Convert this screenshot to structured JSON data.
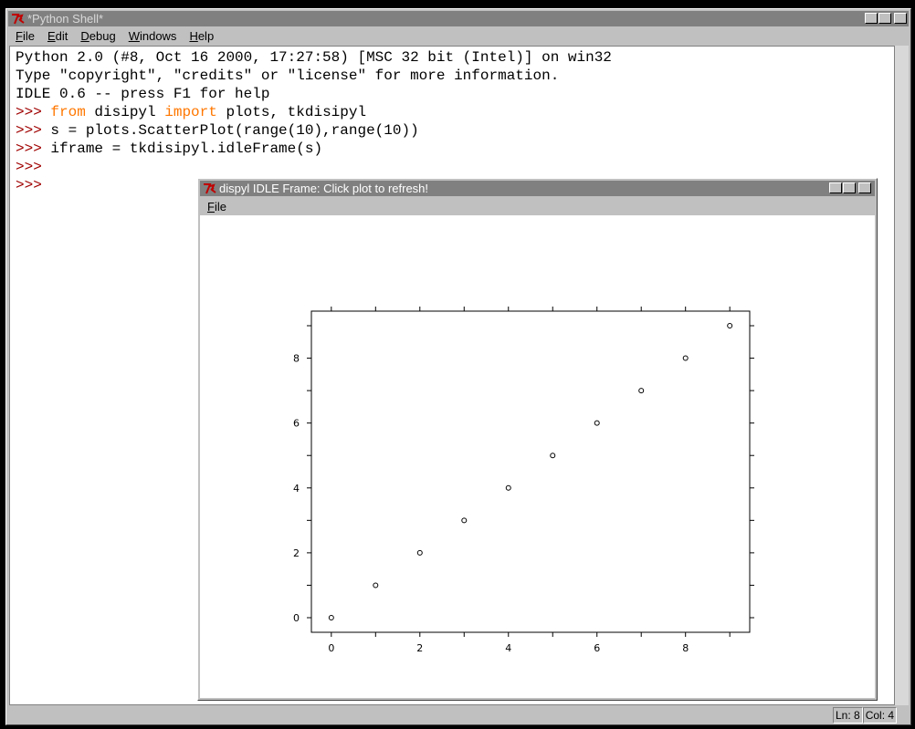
{
  "shell_window": {
    "title": "*Python Shell*",
    "menu": [
      "File",
      "Edit",
      "Debug",
      "Windows",
      "Help"
    ],
    "lines": [
      [
        {
          "text": "Python 2.0 (#8, Oct 16 2000, 17:27:58) [MSC 32 bit (Intel)] on win32",
          "color": "#000000"
        }
      ],
      [
        {
          "text": "Type \"copyright\", \"credits\" or \"license\" for more information.",
          "color": "#000000"
        }
      ],
      [
        {
          "text": "IDLE 0.6 -- press F1 for help",
          "color": "#000000"
        }
      ],
      [
        {
          "text": ">>> ",
          "color": "#a00000"
        },
        {
          "text": "from",
          "color": "#ff7700"
        },
        {
          "text": " disipyl ",
          "color": "#000000"
        },
        {
          "text": "import",
          "color": "#ff7700"
        },
        {
          "text": " plots, tkdisipyl",
          "color": "#000000"
        }
      ],
      [
        {
          "text": ">>> ",
          "color": "#a00000"
        },
        {
          "text": "s = plots.ScatterPlot(range(10),range(10))",
          "color": "#000000"
        }
      ],
      [
        {
          "text": ">>> ",
          "color": "#a00000"
        },
        {
          "text": "iframe = tkdisipyl.idleFrame(s)",
          "color": "#000000"
        }
      ],
      [
        {
          "text": ">>>",
          "color": "#a00000"
        }
      ],
      [
        {
          "text": ">>>",
          "color": "#a00000"
        }
      ]
    ],
    "status": [
      "Ln: 8",
      "Col: 4"
    ]
  },
  "plot_window": {
    "title": "dispyl IDLE Frame: Click plot to refresh!",
    "menu": [
      "File"
    ]
  },
  "chart_data": {
    "type": "scatter",
    "x": [
      0,
      1,
      2,
      3,
      4,
      5,
      6,
      7,
      8,
      9
    ],
    "y": [
      0,
      1,
      2,
      3,
      4,
      5,
      6,
      7,
      8,
      9
    ],
    "color": "#000000",
    "xlim": [
      -0.45,
      9.45
    ],
    "ylim": [
      -0.45,
      9.45
    ],
    "xticks": [
      0,
      2,
      4,
      6,
      8
    ],
    "yticks": [
      0,
      2,
      4,
      6,
      8
    ],
    "minor_xticks": [
      1,
      3,
      5,
      7,
      9
    ],
    "minor_yticks": [
      1,
      3,
      5,
      7,
      9
    ]
  }
}
